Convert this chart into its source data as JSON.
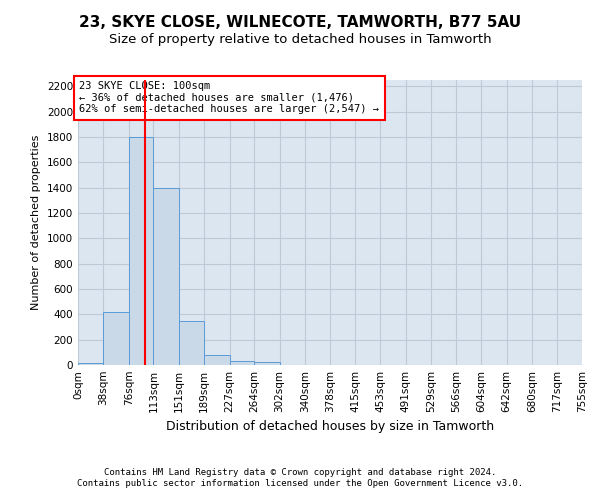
{
  "title1": "23, SKYE CLOSE, WILNECOTE, TAMWORTH, B77 5AU",
  "title2": "Size of property relative to detached houses in Tamworth",
  "xlabel": "Distribution of detached houses by size in Tamworth",
  "ylabel": "Number of detached properties",
  "bin_edges": [
    0,
    38,
    76,
    113,
    151,
    189,
    227,
    264,
    302,
    340,
    378,
    415,
    453,
    491,
    529,
    566,
    604,
    642,
    680,
    717,
    755
  ],
  "bar_heights": [
    15,
    420,
    1800,
    1400,
    350,
    80,
    30,
    20,
    0,
    0,
    0,
    0,
    0,
    0,
    0,
    0,
    0,
    0,
    0,
    0
  ],
  "bar_color": "#c9d9e8",
  "bar_edge_color": "#5b9bd5",
  "grid_color": "#c0c8d8",
  "background_color": "#dce6f1",
  "vline_x": 100,
  "vline_color": "red",
  "annotation_text": "23 SKYE CLOSE: 100sqm\n← 36% of detached houses are smaller (1,476)\n62% of semi-detached houses are larger (2,547) →",
  "annotation_box_color": "white",
  "annotation_box_edge": "red",
  "ylim": [
    0,
    2250
  ],
  "yticks": [
    0,
    200,
    400,
    600,
    800,
    1000,
    1200,
    1400,
    1600,
    1800,
    2000,
    2200
  ],
  "footer_line1": "Contains HM Land Registry data © Crown copyright and database right 2024.",
  "footer_line2": "Contains public sector information licensed under the Open Government Licence v3.0.",
  "title1_fontsize": 11,
  "title2_fontsize": 9.5,
  "xlabel_fontsize": 9,
  "ylabel_fontsize": 8,
  "tick_fontsize": 7.5,
  "footer_fontsize": 6.5
}
